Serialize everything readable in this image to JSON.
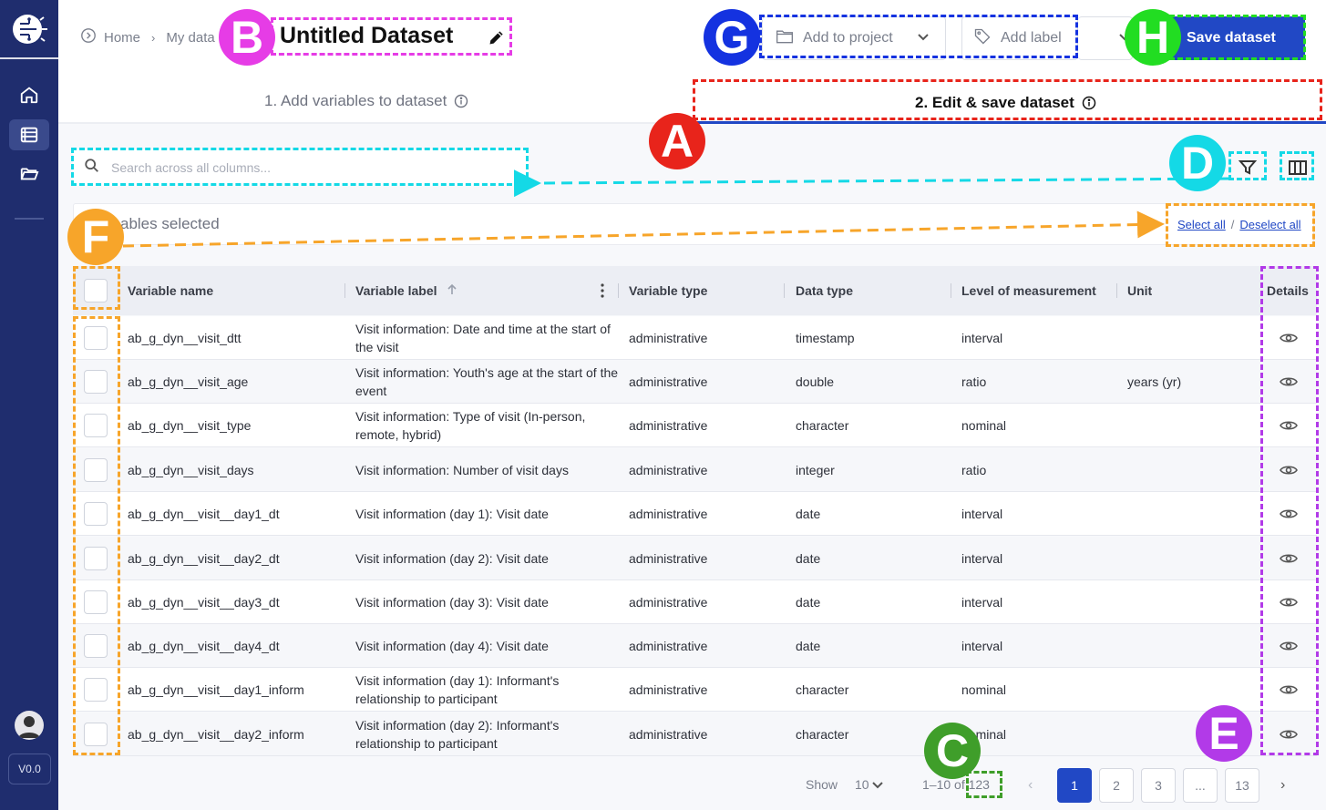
{
  "sidebar": {
    "logo": "brain-circuit-logo-icon",
    "items": [
      {
        "icon": "home-icon",
        "active": false
      },
      {
        "icon": "list-icon",
        "active": true
      },
      {
        "icon": "folder-open-icon",
        "active": false
      }
    ],
    "version": "V0.0"
  },
  "breadcrumb": {
    "home": "Home",
    "current": "My data"
  },
  "header": {
    "title": "Untitled Dataset",
    "add_to_project": "Add to project",
    "add_label": "Add label",
    "save": "Save dataset"
  },
  "steps": {
    "step1": "1. Add variables to dataset",
    "step2": "2. Edit & save dataset"
  },
  "search": {
    "placeholder": "Search across all columns..."
  },
  "selection": {
    "text": "ables selected",
    "select_all": "Select all",
    "deselect_all": "Deselect all"
  },
  "table": {
    "columns": {
      "name": "Variable name",
      "label": "Variable label",
      "vtype": "Variable type",
      "dtype": "Data type",
      "level": "Level of measurement",
      "unit": "Unit",
      "details": "Details"
    },
    "rows": [
      {
        "name": "ab_g_dyn__visit_dtt",
        "label": "Visit information: Date and time at the start of the visit",
        "vtype": "administrative",
        "dtype": "timestamp",
        "level": "interval",
        "unit": ""
      },
      {
        "name": "ab_g_dyn__visit_age",
        "label": "Visit information: Youth's age at the start of the event",
        "vtype": "administrative",
        "dtype": "double",
        "level": "ratio",
        "unit": "years (yr)"
      },
      {
        "name": "ab_g_dyn__visit_type",
        "label": "Visit information: Type of visit (In-person, remote, hybrid)",
        "vtype": "administrative",
        "dtype": "character",
        "level": "nominal",
        "unit": ""
      },
      {
        "name": "ab_g_dyn__visit_days",
        "label": "Visit information: Number of visit days",
        "vtype": "administrative",
        "dtype": "integer",
        "level": "ratio",
        "unit": ""
      },
      {
        "name": "ab_g_dyn__visit__day1_dt",
        "label": "Visit information (day 1): Visit date",
        "vtype": "administrative",
        "dtype": "date",
        "level": "interval",
        "unit": ""
      },
      {
        "name": "ab_g_dyn__visit__day2_dt",
        "label": "Visit information (day 2): Visit date",
        "vtype": "administrative",
        "dtype": "date",
        "level": "interval",
        "unit": ""
      },
      {
        "name": "ab_g_dyn__visit__day3_dt",
        "label": "Visit information (day 3): Visit date",
        "vtype": "administrative",
        "dtype": "date",
        "level": "interval",
        "unit": ""
      },
      {
        "name": "ab_g_dyn__visit__day4_dt",
        "label": "Visit information (day 4): Visit date",
        "vtype": "administrative",
        "dtype": "date",
        "level": "interval",
        "unit": ""
      },
      {
        "name": "ab_g_dyn__visit__day1_inform",
        "label": "Visit information (day 1): Informant's relationship to participant",
        "vtype": "administrative",
        "dtype": "character",
        "level": "nominal",
        "unit": ""
      },
      {
        "name": "ab_g_dyn__visit__day2_inform",
        "label": "Visit information (day 2): Informant's relationship to participant",
        "vtype": "administrative",
        "dtype": "character",
        "level": "nominal",
        "unit": ""
      }
    ]
  },
  "pager": {
    "show_label": "Show",
    "page_size": "10",
    "range": "1–10 of 123",
    "pages": [
      "1",
      "2",
      "3",
      "...",
      "13"
    ],
    "current": "1"
  },
  "annotations": [
    {
      "letter": "A",
      "color": "#e8241b"
    },
    {
      "letter": "B",
      "color": "#e63ce6"
    },
    {
      "letter": "C",
      "color": "#3f9e2a"
    },
    {
      "letter": "D",
      "color": "#14d9e6"
    },
    {
      "letter": "E",
      "color": "#b23ae8"
    },
    {
      "letter": "F",
      "color": "#f7a52a"
    },
    {
      "letter": "G",
      "color": "#1432e0"
    },
    {
      "letter": "H",
      "color": "#22dd22"
    }
  ],
  "colors": {
    "sidebar": "#1f2d6e",
    "primary": "#2148c5"
  }
}
